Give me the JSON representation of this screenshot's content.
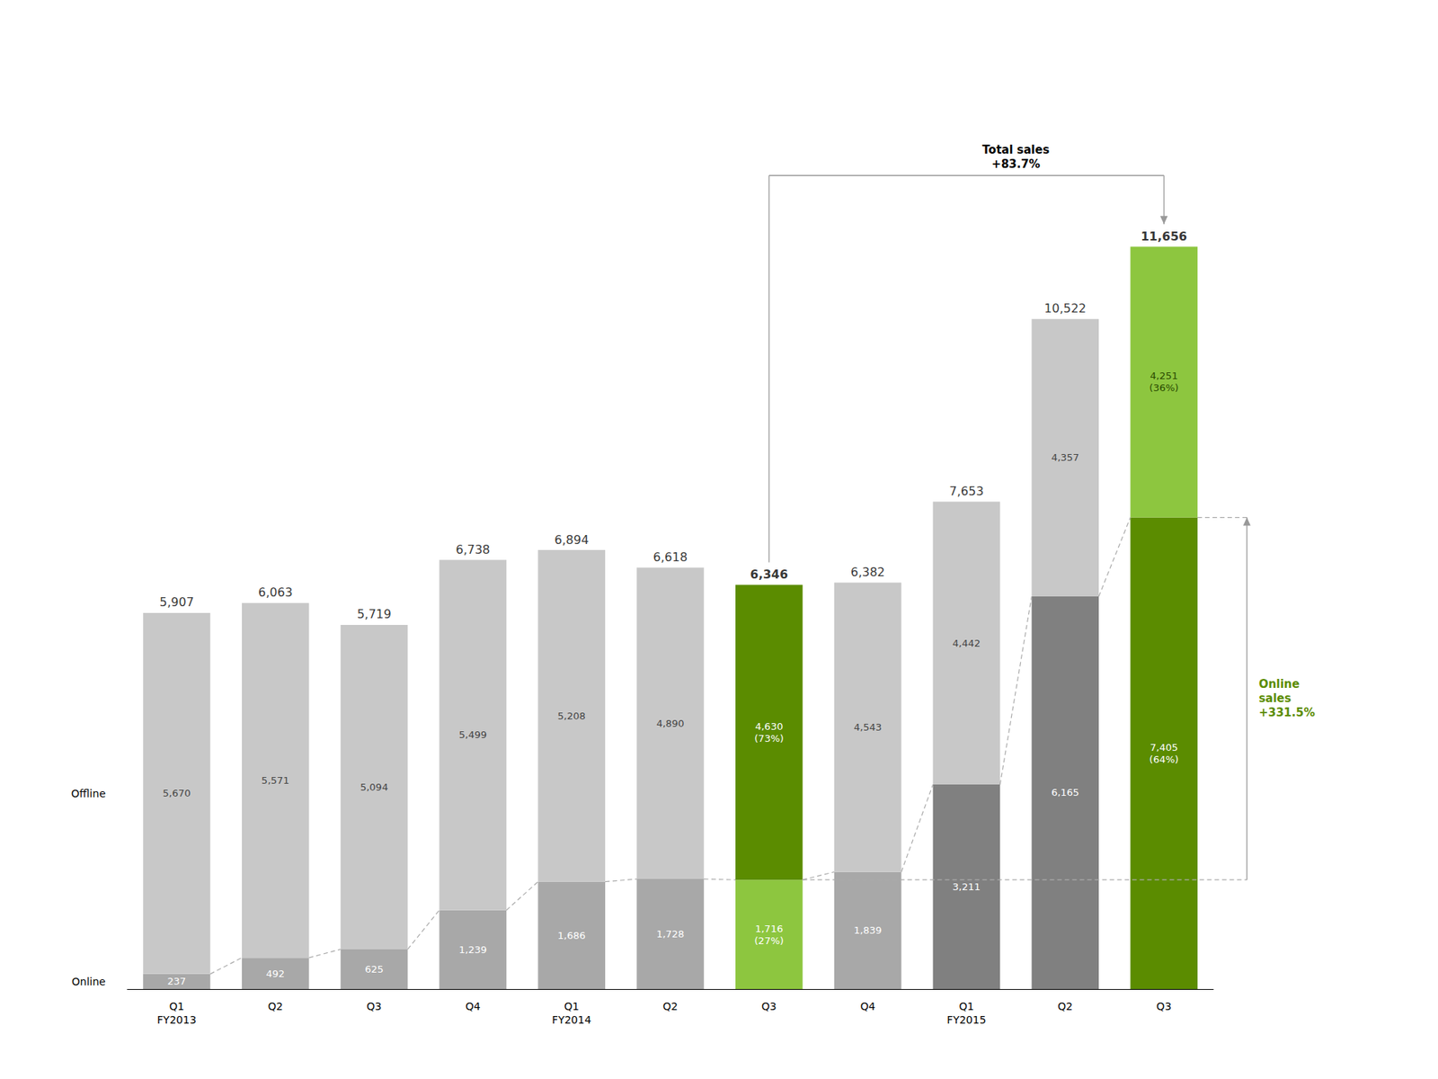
{
  "chart_data": {
    "type": "bar",
    "categories": [
      "Q1\nFY2013",
      "Q2",
      "Q3",
      "Q4",
      "Q1\nFY2014",
      "Q2",
      "Q3",
      "Q4",
      "Q1\nFY2015",
      "Q2",
      "Q3"
    ],
    "series": [
      {
        "name": "Online",
        "values": [
          237,
          492,
          625,
          1239,
          1686,
          1728,
          1716,
          1839,
          3211,
          6165,
          7405
        ],
        "value_labels": [
          "237",
          "492",
          "625",
          "1,239",
          "1,686",
          "1,728",
          "1,716\n(27%)",
          "1,839",
          "3,211",
          "6,165",
          "7,405\n(64%)"
        ],
        "colors": [
          "#A8A8A8",
          "#A8A8A8",
          "#A8A8A8",
          "#A8A8A8",
          "#A8A8A8",
          "#A8A8A8",
          "#8DC63F",
          "#A8A8A8",
          "#808080",
          "#808080",
          "#5B8C00"
        ]
      },
      {
        "name": "Offline",
        "values": [
          5670,
          5571,
          5094,
          5499,
          5208,
          4890,
          4630,
          4543,
          4442,
          4357,
          4251
        ],
        "value_labels": [
          "5,670",
          "5,571",
          "5,094",
          "5,499",
          "5,208",
          "4,890",
          "4,630\n(73%)",
          "4,543",
          "4,442",
          "4,357",
          "4,251\n(36%)"
        ],
        "colors": [
          "#C8C8C8",
          "#C8C8C8",
          "#C8C8C8",
          "#C8C8C8",
          "#C8C8C8",
          "#C8C8C8",
          "#5B8C00",
          "#C8C8C8",
          "#C8C8C8",
          "#C8C8C8",
          "#8DC63F"
        ]
      }
    ],
    "totals": [
      5907,
      6063,
      5719,
      6738,
      6894,
      6618,
      6346,
      6382,
      7653,
      10522,
      11656
    ],
    "total_labels": [
      "5,907",
      "6,063",
      "5,719",
      "6,738",
      "6,894",
      "6,618",
      "6,346",
      "6,382",
      "7,653",
      "10,522",
      "11,656"
    ],
    "ylim": [
      0,
      14000
    ],
    "stacked": true,
    "data_labels": true,
    "tick_labels": "x",
    "grid": false,
    "annotations": [
      {
        "text": "Total sales\n+83.7%"
      },
      {
        "text": "Online\nsales\n+331.5%",
        "color": "#5B8C00"
      }
    ]
  }
}
